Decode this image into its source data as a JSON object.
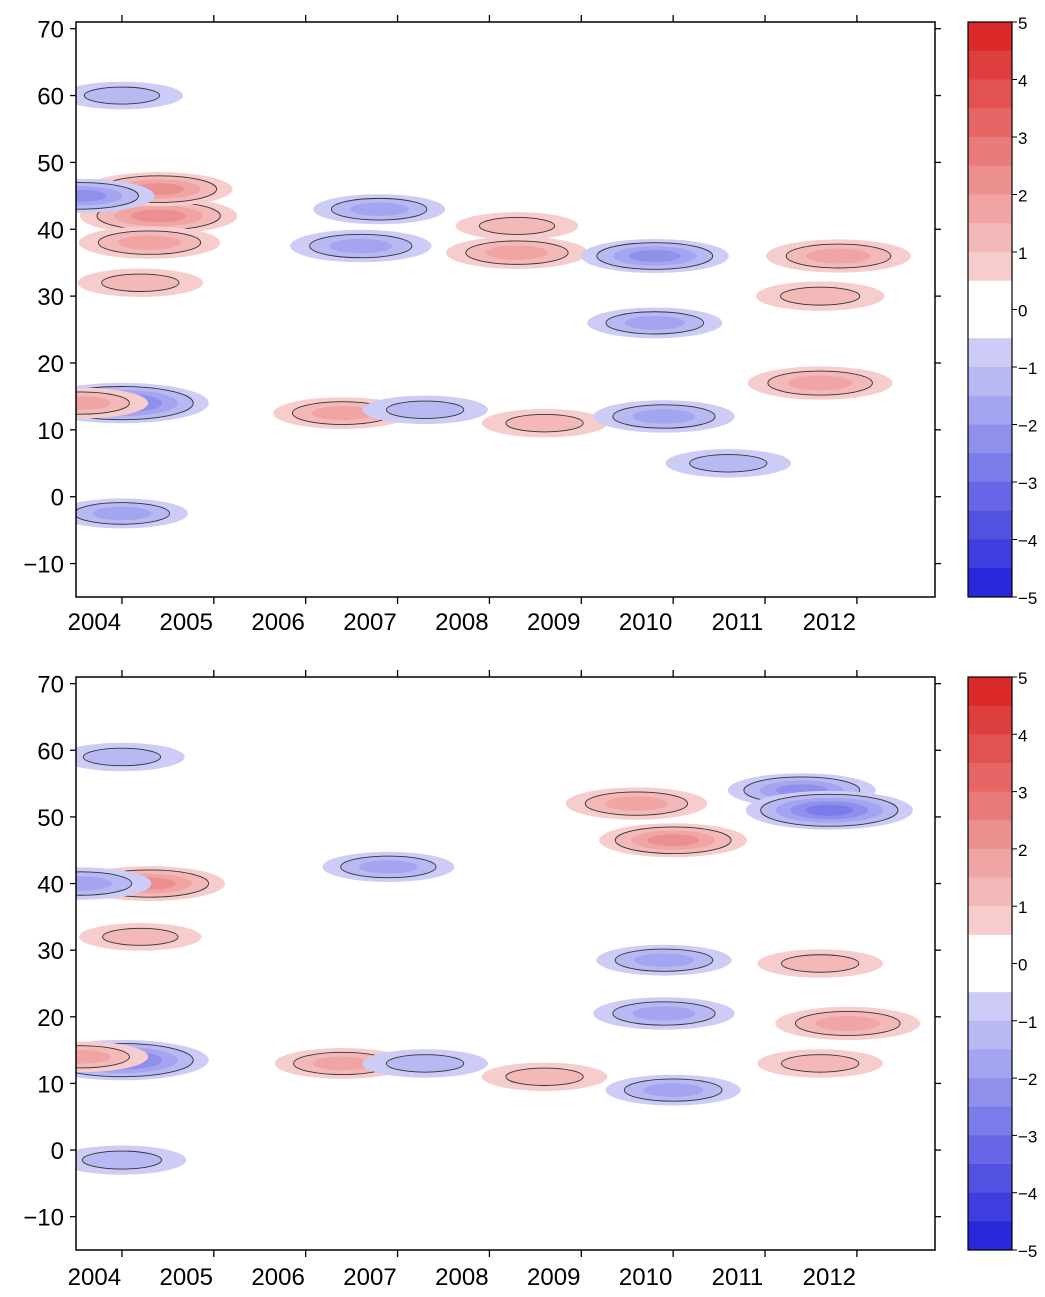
{
  "chart_data": [
    {
      "type": "heatmap",
      "title": "",
      "xlabel": "",
      "ylabel": "",
      "x_tick_labels": [
        "2004",
        "2005",
        "2006",
        "2007",
        "2008",
        "2009",
        "2010",
        "2011",
        "2012"
      ],
      "xlim": [
        2003.5,
        2012.85
      ],
      "y_ticks": [
        70,
        60,
        50,
        40,
        30,
        20,
        10,
        0,
        -10
      ],
      "ylim": [
        -15,
        71
      ],
      "colorbar": {
        "range": [
          -5,
          5
        ],
        "step": 0.5,
        "tick_values": [
          5,
          4,
          3,
          2,
          1,
          0,
          -1,
          -2,
          -3,
          -4,
          -5
        ],
        "negative_color": "#1515d8",
        "positive_color": "#d81515",
        "zero_color": "#ffffff"
      },
      "features": [
        {
          "x": 2004.0,
          "y": 14,
          "value": -2.8
        },
        {
          "x": 2004.0,
          "y": -2.5,
          "value": -1.5
        },
        {
          "x": 2004.0,
          "y": 60,
          "value": -1.2
        },
        {
          "x": 2004.4,
          "y": 42,
          "value": 2.3
        },
        {
          "x": 2004.4,
          "y": 46,
          "value": 2.0
        },
        {
          "x": 2004.3,
          "y": 38,
          "value": 1.8
        },
        {
          "x": 2004.2,
          "y": 32,
          "value": 1.3
        },
        {
          "x": 2006.4,
          "y": 12.5,
          "value": 1.7
        },
        {
          "x": 2006.8,
          "y": 43,
          "value": -1.5
        },
        {
          "x": 2006.6,
          "y": 37.5,
          "value": -1.8
        },
        {
          "x": 2007.3,
          "y": 13,
          "value": -1.3
        },
        {
          "x": 2008.3,
          "y": 40.5,
          "value": 1.2
        },
        {
          "x": 2008.3,
          "y": 36.5,
          "value": 1.8
        },
        {
          "x": 2008.6,
          "y": 11,
          "value": 1.3
        },
        {
          "x": 2009.8,
          "y": 36,
          "value": -2.0
        },
        {
          "x": 2009.8,
          "y": 26,
          "value": -1.6
        },
        {
          "x": 2009.9,
          "y": 12,
          "value": -1.8
        },
        {
          "x": 2010.6,
          "y": 5,
          "value": -1.3
        },
        {
          "x": 2011.6,
          "y": 17,
          "value": 1.9
        },
        {
          "x": 2011.8,
          "y": 36,
          "value": 1.9
        },
        {
          "x": 2011.6,
          "y": 30,
          "value": 1.4
        },
        {
          "x": 2003.55,
          "y": 45,
          "value": -2.0
        },
        {
          "x": 2003.55,
          "y": 14,
          "value": 1.6
        }
      ]
    },
    {
      "type": "heatmap",
      "title": "",
      "xlabel": "",
      "ylabel": "",
      "x_tick_labels": [
        "2004",
        "2005",
        "2006",
        "2007",
        "2008",
        "2009",
        "2010",
        "2011",
        "2012"
      ],
      "xlim": [
        2003.5,
        2012.85
      ],
      "y_ticks": [
        70,
        60,
        50,
        40,
        30,
        20,
        10,
        0,
        -10
      ],
      "ylim": [
        -15,
        71
      ],
      "colorbar": {
        "range": [
          -5,
          5
        ],
        "step": 0.5,
        "tick_values": [
          5,
          4,
          3,
          2,
          1,
          0,
          -1,
          -2,
          -3,
          -4,
          -5
        ],
        "negative_color": "#1515d8",
        "positive_color": "#d81515",
        "zero_color": "#ffffff"
      },
      "features": [
        {
          "x": 2004.0,
          "y": 13.5,
          "value": -2.8
        },
        {
          "x": 2004.0,
          "y": -1.5,
          "value": -1.4
        },
        {
          "x": 2004.0,
          "y": 59,
          "value": -1.3
        },
        {
          "x": 2004.3,
          "y": 40,
          "value": 2.1
        },
        {
          "x": 2004.2,
          "y": 32,
          "value": 1.2
        },
        {
          "x": 2006.4,
          "y": 13,
          "value": 1.6
        },
        {
          "x": 2006.9,
          "y": 42.5,
          "value": -1.5
        },
        {
          "x": 2007.3,
          "y": 13,
          "value": -1.3
        },
        {
          "x": 2008.6,
          "y": 11,
          "value": 1.3
        },
        {
          "x": 2009.6,
          "y": 52,
          "value": 1.8
        },
        {
          "x": 2010.0,
          "y": 46.5,
          "value": 2.0
        },
        {
          "x": 2009.9,
          "y": 28.5,
          "value": -1.6
        },
        {
          "x": 2009.9,
          "y": 20.5,
          "value": -1.8
        },
        {
          "x": 2010.0,
          "y": 9,
          "value": -1.6
        },
        {
          "x": 2011.4,
          "y": 54,
          "value": -2.0
        },
        {
          "x": 2011.7,
          "y": 51,
          "value": -2.6
        },
        {
          "x": 2011.9,
          "y": 19,
          "value": 1.9
        },
        {
          "x": 2011.6,
          "y": 28,
          "value": 1.3
        },
        {
          "x": 2011.6,
          "y": 13,
          "value": 1.3
        },
        {
          "x": 2003.55,
          "y": 40,
          "value": -1.8
        },
        {
          "x": 2003.55,
          "y": 14,
          "value": 1.6
        }
      ]
    }
  ]
}
